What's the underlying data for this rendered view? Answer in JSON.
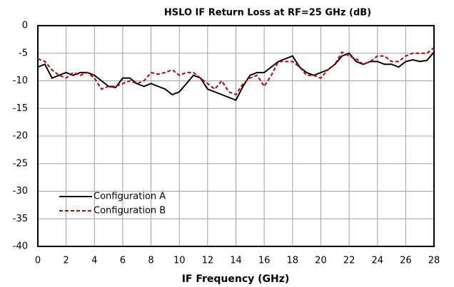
{
  "chart_data": {
    "type": "line",
    "title": "HSLO IF Return Loss at RF=25 GHz (dB)",
    "x_label": "IF Frequency (GHz)",
    "x": [
      0,
      0.5,
      1,
      1.5,
      2,
      2.5,
      3,
      3.5,
      4,
      4.5,
      5,
      5.5,
      6,
      6.5,
      7,
      7.5,
      8,
      8.5,
      9,
      9.5,
      10,
      10.5,
      11,
      11.5,
      12,
      12.5,
      13,
      13.5,
      14,
      14.5,
      15,
      15.5,
      16,
      16.5,
      17,
      17.5,
      18,
      18.5,
      19,
      19.5,
      20,
      20.5,
      21,
      21.5,
      22,
      22.5,
      23,
      23.5,
      24,
      24.5,
      25,
      25.5,
      26,
      26.5,
      27,
      27.5,
      28
    ],
    "series": [
      {
        "name": "Configuration A",
        "color": "#000000",
        "dash": "solid",
        "values": [
          -7.5,
          -7,
          -9.5,
          -9,
          -8.5,
          -9,
          -8.5,
          -8.5,
          -9,
          -10,
          -11,
          -11.2,
          -9.5,
          -9.5,
          -10.5,
          -11,
          -10.5,
          -11,
          -11.5,
          -12.5,
          -12,
          -10.5,
          -9,
          -9.5,
          -11.5,
          -12,
          -12.5,
          -13,
          -13.5,
          -11,
          -9,
          -8.5,
          -8.5,
          -7.5,
          -6.5,
          -6,
          -5.5,
          -7.5,
          -8.5,
          -9,
          -8.5,
          -8,
          -7,
          -5.5,
          -5,
          -6.5,
          -7,
          -6.5,
          -6.5,
          -7,
          -7,
          -7.5,
          -6.5,
          -6.2,
          -6.5,
          -6.3,
          -4.8
        ]
      },
      {
        "name": "Configuration B",
        "color": "#c00000",
        "dash": "dashed",
        "values": [
          -6,
          -6.5,
          -8,
          -9,
          -9.5,
          -8.5,
          -9,
          -8.5,
          -9.5,
          -11.5,
          -11,
          -11,
          -10.5,
          -10,
          -10.5,
          -10,
          -8.5,
          -8.8,
          -8.5,
          -8,
          -9,
          -8.5,
          -8.5,
          -9.5,
          -10.5,
          -11.5,
          -10,
          -12,
          -12.5,
          -10.5,
          -9.5,
          -9,
          -11,
          -9,
          -6.5,
          -6.5,
          -6.5,
          -7.5,
          -9,
          -9,
          -9.5,
          -8,
          -7,
          -4.8,
          -5.5,
          -6,
          -7,
          -6.5,
          -5.5,
          -5.5,
          -6.5,
          -6.5,
          -5.5,
          -5,
          -5,
          -5,
          -4
        ]
      }
    ],
    "xlim": [
      0,
      28
    ],
    "xticks": [
      0,
      2,
      4,
      6,
      8,
      10,
      12,
      14,
      16,
      18,
      20,
      22,
      24,
      26,
      28
    ],
    "ylim": [
      -40,
      0
    ],
    "yticks": [
      0,
      -5,
      -10,
      -15,
      -20,
      -25,
      -30,
      -35,
      -40
    ],
    "grid": true,
    "legend": "lower left"
  }
}
